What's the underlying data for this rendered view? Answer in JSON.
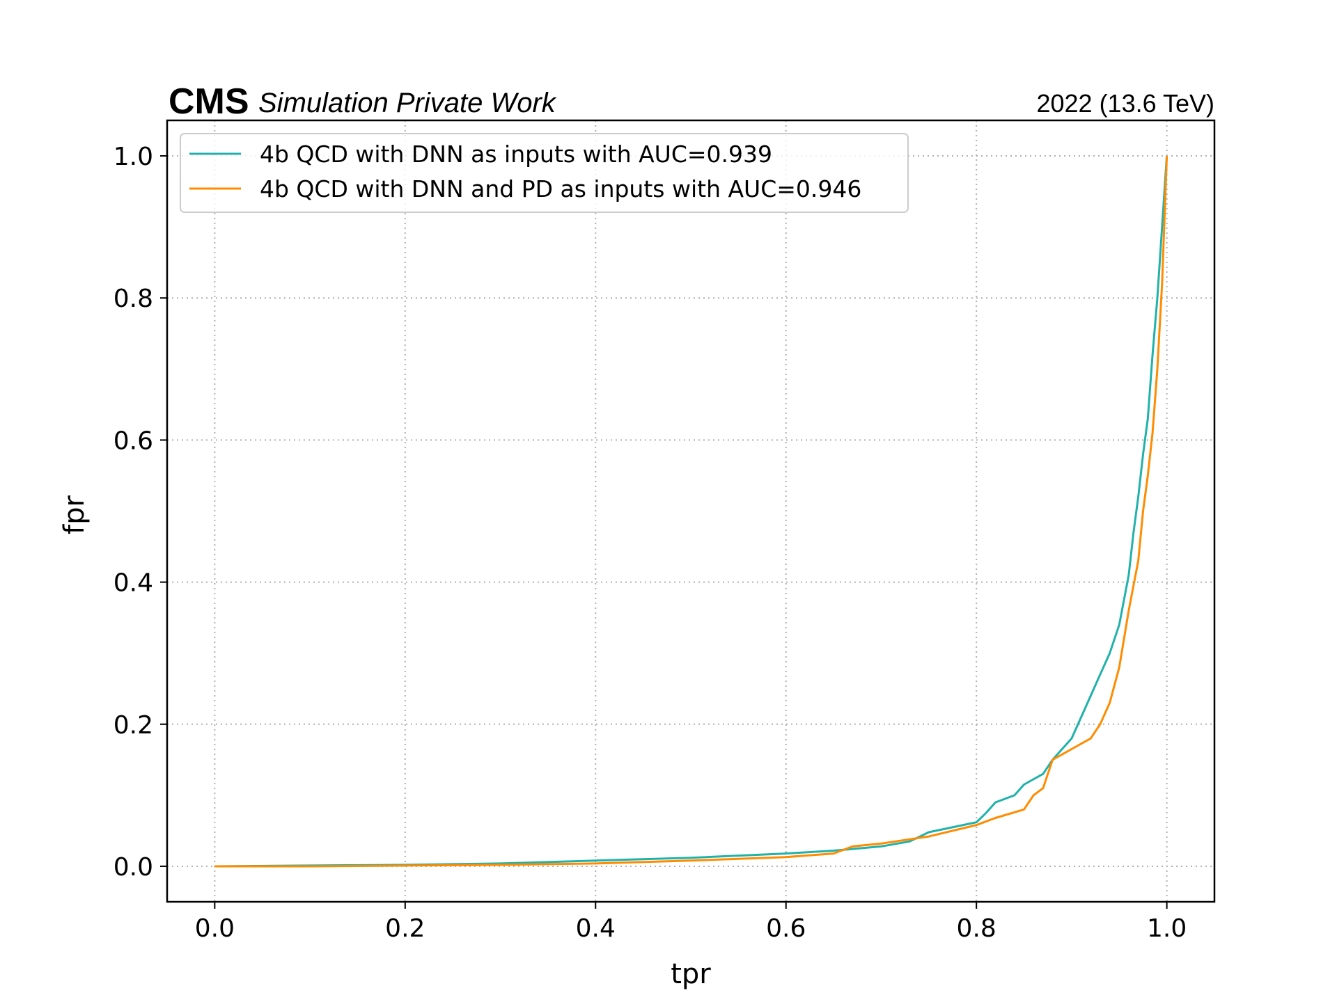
{
  "header": {
    "experiment": "CMS",
    "status": "Simulation Private Work",
    "lumi": "2022 (13.6 TeV)"
  },
  "chart_data": {
    "type": "line",
    "title": "",
    "xlabel": "tpr",
    "ylabel": "fpr",
    "xlim": [
      -0.05,
      1.05
    ],
    "ylim": [
      -0.05,
      1.05
    ],
    "xticks": [
      "0.0",
      "0.2",
      "0.4",
      "0.6",
      "0.8",
      "1.0"
    ],
    "yticks": [
      "0.0",
      "0.2",
      "0.4",
      "0.6",
      "0.8",
      "1.0"
    ],
    "grid": true,
    "legend_position": "top-left",
    "series": [
      {
        "name": "4b QCD with DNN as inputs with AUC=0.939",
        "color": "#20b2aa",
        "x": [
          0.0,
          0.1,
          0.2,
          0.3,
          0.4,
          0.5,
          0.6,
          0.65,
          0.7,
          0.73,
          0.75,
          0.8,
          0.81,
          0.82,
          0.84,
          0.85,
          0.87,
          0.88,
          0.9,
          0.91,
          0.92,
          0.93,
          0.94,
          0.95,
          0.96,
          0.965,
          0.97,
          0.975,
          0.98,
          0.985,
          0.99,
          0.995,
          1.0
        ],
        "y": [
          0.0,
          0.001,
          0.002,
          0.004,
          0.008,
          0.012,
          0.018,
          0.022,
          0.028,
          0.035,
          0.048,
          0.062,
          0.075,
          0.09,
          0.1,
          0.115,
          0.13,
          0.15,
          0.18,
          0.21,
          0.24,
          0.27,
          0.3,
          0.34,
          0.41,
          0.47,
          0.52,
          0.58,
          0.63,
          0.72,
          0.8,
          0.9,
          1.0
        ]
      },
      {
        "name": "4b QCD with DNN and PD as inputs with AUC=0.946",
        "color": "#ff8c00",
        "x": [
          0.0,
          0.1,
          0.2,
          0.3,
          0.4,
          0.5,
          0.6,
          0.65,
          0.67,
          0.7,
          0.73,
          0.75,
          0.8,
          0.82,
          0.85,
          0.86,
          0.87,
          0.88,
          0.9,
          0.92,
          0.93,
          0.94,
          0.95,
          0.96,
          0.97,
          0.975,
          0.98,
          0.985,
          0.99,
          0.995,
          1.0
        ],
        "y": [
          0.0,
          0.0,
          0.001,
          0.002,
          0.004,
          0.008,
          0.013,
          0.018,
          0.028,
          0.032,
          0.038,
          0.042,
          0.058,
          0.068,
          0.08,
          0.1,
          0.11,
          0.15,
          0.165,
          0.18,
          0.2,
          0.23,
          0.28,
          0.36,
          0.43,
          0.5,
          0.55,
          0.61,
          0.7,
          0.82,
          1.0
        ]
      }
    ]
  }
}
